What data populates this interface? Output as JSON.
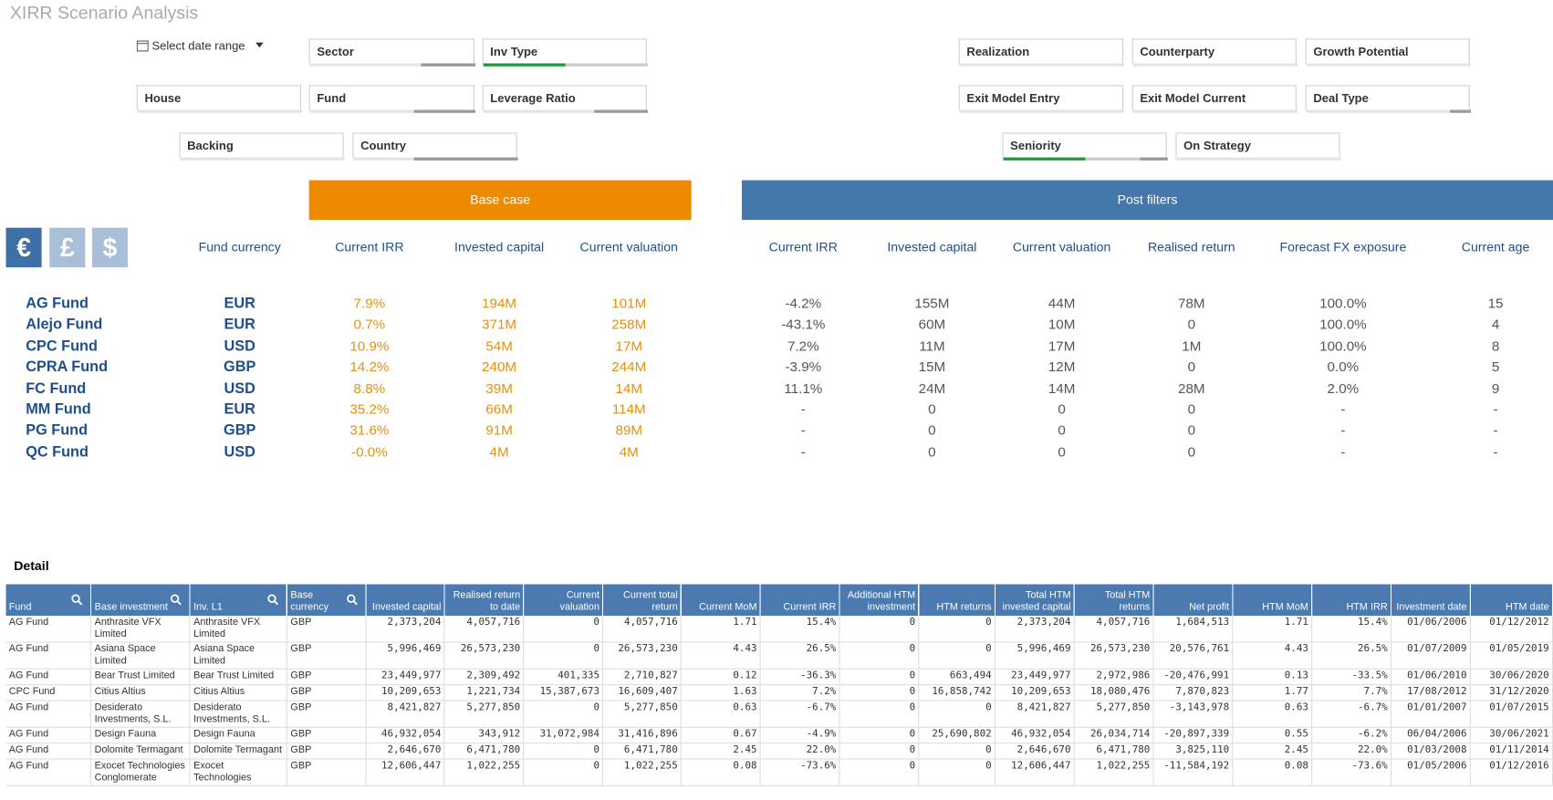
{
  "title": "XIRR Scenario Analysis",
  "date_range": "Select date range",
  "filters": [
    "Sector",
    "Inv Type",
    "Realization",
    "Counterparty",
    "Growth Potential",
    "House",
    "Fund",
    "Leverage Ratio",
    "Exit Model Entry",
    "Exit Model Current",
    "Deal Type",
    "Backing",
    "Country",
    "Seniority",
    "On Strategy"
  ],
  "currency_buttons": [
    "€",
    "£",
    "$"
  ],
  "summary": {
    "base_case": "Base case",
    "post_filters": "Post filters",
    "fund_currency_header": "Fund currency",
    "base_headers": [
      "Current IRR",
      "Invested capital",
      "Current valuation"
    ],
    "post_headers": [
      "Current IRR",
      "Invested capital",
      "Current valuation",
      "Realised return",
      "Forecast FX exposure",
      "Current age"
    ],
    "rows": [
      {
        "fund": "AG Fund",
        "currency": "EUR",
        "base": [
          "7.9%",
          "194M",
          "101M"
        ],
        "post": [
          "-4.2%",
          "155M",
          "44M",
          "78M",
          "100.0%",
          "15"
        ]
      },
      {
        "fund": "Alejo Fund",
        "currency": "EUR",
        "base": [
          "0.7%",
          "371M",
          "258M"
        ],
        "post": [
          "-43.1%",
          "60M",
          "10M",
          "0",
          "100.0%",
          "4"
        ]
      },
      {
        "fund": "CPC Fund",
        "currency": "USD",
        "base": [
          "10.9%",
          "54M",
          "17M"
        ],
        "post": [
          "7.2%",
          "11M",
          "17M",
          "1M",
          "100.0%",
          "8"
        ]
      },
      {
        "fund": "CPRA Fund",
        "currency": "GBP",
        "base": [
          "14.2%",
          "240M",
          "244M"
        ],
        "post": [
          "-3.9%",
          "15M",
          "12M",
          "0",
          "0.0%",
          "5"
        ]
      },
      {
        "fund": "FC Fund",
        "currency": "USD",
        "base": [
          "8.8%",
          "39M",
          "14M"
        ],
        "post": [
          "11.1%",
          "24M",
          "14M",
          "28M",
          "2.0%",
          "9"
        ]
      },
      {
        "fund": "MM Fund",
        "currency": "EUR",
        "base": [
          "35.2%",
          "66M",
          "114M"
        ],
        "post": [
          "-",
          "0",
          "0",
          "0",
          "-",
          "-"
        ]
      },
      {
        "fund": "PG Fund",
        "currency": "GBP",
        "base": [
          "31.6%",
          "91M",
          "89M"
        ],
        "post": [
          "-",
          "0",
          "0",
          "0",
          "-",
          "-"
        ]
      },
      {
        "fund": "QC Fund",
        "currency": "USD",
        "base": [
          "-0.0%",
          "4M",
          "4M"
        ],
        "post": [
          "-",
          "0",
          "0",
          "0",
          "-",
          "-"
        ]
      }
    ]
  },
  "detail": {
    "title": "Detail",
    "headers": [
      "Fund",
      "Base investment",
      "Inv. L1",
      "Base currency",
      "Invested capital",
      "Realised return to date",
      "Current valuation",
      "Current total return",
      "Current MoM",
      "Current IRR",
      "Additional HTM investment",
      "HTM returns",
      "Total HTM invested capital",
      "Total HTM returns",
      "Net profit",
      "HTM MoM",
      "HTM IRR",
      "Investment date",
      "HTM date"
    ],
    "rows": [
      [
        "AG Fund",
        "Anthrasite VFX Limited",
        "Anthrasite VFX Limited",
        "GBP",
        "2,373,204",
        "4,057,716",
        "0",
        "4,057,716",
        "1.71",
        "15.4%",
        "0",
        "0",
        "2,373,204",
        "4,057,716",
        "1,684,513",
        "1.71",
        "15.4%",
        "01/06/2006",
        "01/12/2012"
      ],
      [
        "AG Fund",
        "Asiana Space Limited",
        "Asiana Space Limited",
        "GBP",
        "5,996,469",
        "26,573,230",
        "0",
        "26,573,230",
        "4.43",
        "26.5%",
        "0",
        "0",
        "5,996,469",
        "26,573,230",
        "20,576,761",
        "4.43",
        "26.5%",
        "01/07/2009",
        "01/05/2019"
      ],
      [
        "AG Fund",
        "Bear Trust Limited",
        "Bear Trust Limited",
        "GBP",
        "23,449,977",
        "2,309,492",
        "401,335",
        "2,710,827",
        "0.12",
        "-36.3%",
        "0",
        "663,494",
        "23,449,977",
        "2,972,986",
        "-20,476,991",
        "0.13",
        "-33.5%",
        "01/06/2010",
        "30/06/2020"
      ],
      [
        "CPC Fund",
        "Citius Altius",
        "Citius Altius",
        "GBP",
        "10,209,653",
        "1,221,734",
        "15,387,673",
        "16,609,407",
        "1.63",
        "7.2%",
        "0",
        "16,858,742",
        "10,209,653",
        "18,080,476",
        "7,870,823",
        "1.77",
        "7.7%",
        "17/08/2012",
        "31/12/2020"
      ],
      [
        "AG Fund",
        "Desiderato Investments, S.L.",
        "Desiderato Investments, S.L.",
        "GBP",
        "8,421,827",
        "5,277,850",
        "0",
        "5,277,850",
        "0.63",
        "-6.7%",
        "0",
        "0",
        "8,421,827",
        "5,277,850",
        "-3,143,978",
        "0.63",
        "-6.7%",
        "01/01/2007",
        "01/07/2015"
      ],
      [
        "AG Fund",
        "Design Fauna",
        "Design Fauna",
        "GBP",
        "46,932,054",
        "343,912",
        "31,072,984",
        "31,416,896",
        "0.67",
        "-4.9%",
        "0",
        "25,690,802",
        "46,932,054",
        "26,034,714",
        "-20,897,339",
        "0.55",
        "-6.2%",
        "06/04/2006",
        "30/06/2021"
      ],
      [
        "AG Fund",
        "Dolomite Termagant",
        "Dolomite Termagant",
        "GBP",
        "2,646,670",
        "6,471,780",
        "0",
        "6,471,780",
        "2.45",
        "22.0%",
        "0",
        "0",
        "2,646,670",
        "6,471,780",
        "3,825,110",
        "2.45",
        "22.0%",
        "01/03/2008",
        "01/11/2014"
      ],
      [
        "AG Fund",
        "Exocet Technologies Conglomerate",
        "Exocet Technologies",
        "GBP",
        "12,606,447",
        "1,022,255",
        "0",
        "1,022,255",
        "0.08",
        "-73.6%",
        "0",
        "0",
        "12,606,447",
        "1,022,255",
        "-11,584,192",
        "0.08",
        "-73.6%",
        "01/05/2006",
        "01/12/2016"
      ]
    ]
  }
}
